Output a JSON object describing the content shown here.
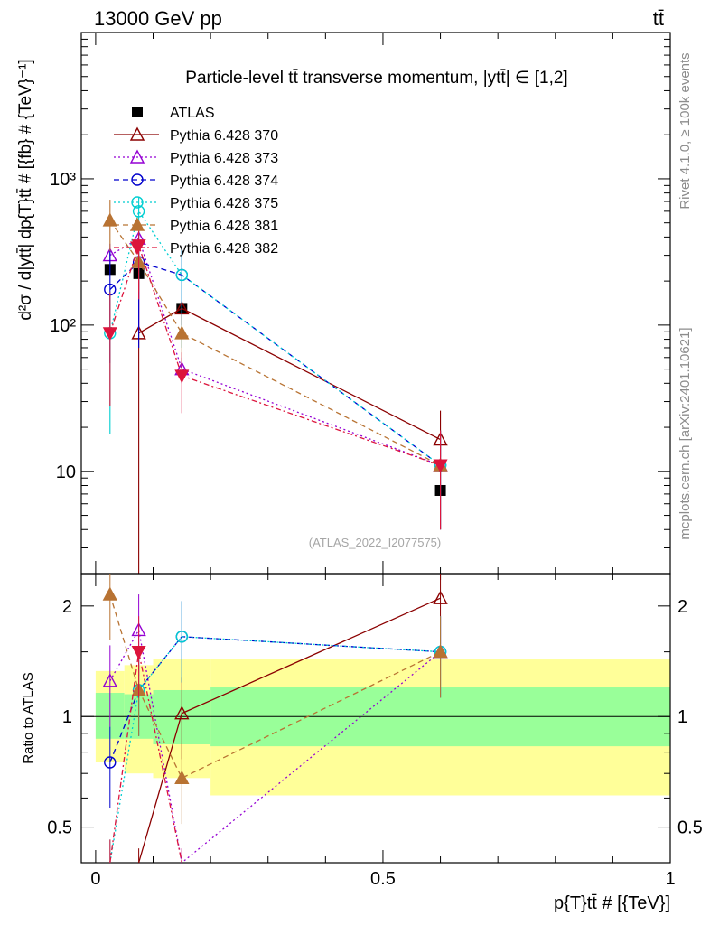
{
  "header": {
    "left": "13000 GeV pp",
    "right": "tt̄"
  },
  "side_labels": {
    "rivet": "Rivet 4.1.0, ≥ 100k events",
    "mcplots": "mcplots.cern.ch [arXiv:2401.10621]"
  },
  "chart_data": [
    {
      "type": "line",
      "panel": "main",
      "title": "Particle-level tt̄ transverse momentum, |ytt̄| ∈ [1,2]",
      "analysis_ref": "(ATLAS_2022_I2077575)",
      "ylabel": "d²σ / d|ytt̄| dp{T}tt̄ # [{fb} # {TeV}⁻¹]",
      "yscale": "log",
      "xlim": [
        -0.025,
        1.0
      ],
      "ylim": [
        2.0,
        10000
      ],
      "y_tick_labels": [
        "10",
        "10²",
        "10³"
      ],
      "y_tick_values": [
        10,
        100,
        1000
      ],
      "x_bins": [
        [
          0.0,
          0.05
        ],
        [
          0.05,
          0.1
        ],
        [
          0.1,
          0.2
        ],
        [
          0.2,
          1.0
        ]
      ],
      "series": [
        {
          "name": "ATLAS",
          "color": "#000000",
          "marker": "square",
          "line": "none",
          "x": [
            0.025,
            0.075,
            0.15,
            0.6
          ],
          "values": [
            240,
            225,
            130,
            7.4
          ]
        },
        {
          "name": "Pythia 6.428 370",
          "color": "#8b0000",
          "marker": "triangle-open",
          "line": "solid",
          "x": [
            0.025,
            0.075,
            0.15,
            0.6
          ],
          "values": [
            null,
            88,
            130,
            16.5
          ],
          "err_lo": [
            null,
            88,
            12,
            4
          ],
          "err_hi": [
            null,
            200,
            16,
            9.5
          ]
        },
        {
          "name": "Pythia 6.428 373",
          "color": "#9400d3",
          "marker": "triangle-open",
          "line": "dotted",
          "x": [
            0.025,
            0.075,
            0.15,
            0.6
          ],
          "values": [
            300,
            390,
            50,
            11
          ],
          "err_lo": [
            40,
            300,
            10,
            7
          ],
          "err_hi": [
            60,
            70,
            10,
            8
          ]
        },
        {
          "name": "Pythia 6.428 374",
          "color": "#0000cd",
          "marker": "circle-open",
          "line": "dashed",
          "x": [
            0.025,
            0.075,
            0.15,
            0.6
          ],
          "values": [
            175,
            270,
            220,
            11
          ],
          "err_lo": [
            120,
            200,
            120,
            7
          ],
          "err_hi": [
            150,
            60,
            120,
            8
          ]
        },
        {
          "name": "Pythia 6.428 375",
          "color": "#00ced1",
          "marker": "circle-open",
          "line": "dotted",
          "x": [
            0.025,
            0.075,
            0.15,
            0.6
          ],
          "values": [
            88,
            600,
            220,
            11
          ],
          "err_lo": [
            70,
            400,
            150,
            7
          ],
          "err_hi": [
            80,
            150,
            120,
            8
          ]
        },
        {
          "name": "Pythia 6.428 381",
          "color": "#b87333",
          "marker": "triangle-filled",
          "line": "dashed",
          "x": [
            0.025,
            0.075,
            0.15,
            0.6
          ],
          "values": [
            520,
            270,
            88,
            11
          ],
          "err_lo": [
            200,
            100,
            40,
            7
          ],
          "err_hi": [
            200,
            100,
            30,
            8
          ]
        },
        {
          "name": "Pythia 6.428 382",
          "color": "#dc143c",
          "marker": "triangle-down-filled",
          "line": "dashdot",
          "x": [
            0.025,
            0.075,
            0.15,
            0.6
          ],
          "values": [
            88,
            350,
            45,
            11
          ],
          "err_lo": [
            60,
            200,
            20,
            7
          ],
          "err_hi": [
            80,
            100,
            20,
            8
          ]
        }
      ]
    },
    {
      "type": "line",
      "panel": "ratio",
      "ylabel": "Ratio to ATLAS",
      "xlabel": "p{T}tt̄ # [{TeV}]",
      "xlim": [
        -0.025,
        1.0
      ],
      "ylim": [
        0.4,
        2.45
      ],
      "x_tick_labels": [
        "0",
        "0.5",
        "1"
      ],
      "x_tick_values": [
        0,
        0.5,
        1
      ],
      "y_tick_labels": [
        "0.5",
        "1",
        "2"
      ],
      "y_tick_values": [
        0.5,
        1,
        2
      ],
      "bands": {
        "bins": [
          [
            0.0,
            0.05
          ],
          [
            0.05,
            0.1
          ],
          [
            0.1,
            0.2
          ],
          [
            0.2,
            1.0
          ]
        ],
        "inner_green": [
          [
            0.87,
            1.16
          ],
          [
            0.87,
            1.15
          ],
          [
            0.84,
            1.18
          ],
          [
            0.83,
            1.2
          ]
        ],
        "outer_yellow": [
          [
            0.75,
            1.33
          ],
          [
            0.7,
            1.38
          ],
          [
            0.68,
            1.43
          ],
          [
            0.61,
            1.43
          ]
        ]
      },
      "series": [
        {
          "name": "Pythia 6.428 370",
          "color": "#8b0000",
          "x": [
            0.075,
            0.15,
            0.6
          ],
          "values": [
            0.35,
            1.02,
            2.1
          ]
        },
        {
          "name": "Pythia 6.428 373",
          "color": "#9400d3",
          "x": [
            0.025,
            0.075,
            0.15,
            0.6
          ],
          "values": [
            1.25,
            1.72,
            0.35,
            1.5
          ]
        },
        {
          "name": "Pythia 6.428 374",
          "color": "#0000cd",
          "x": [
            0.025,
            0.075,
            0.15,
            0.6
          ],
          "values": [
            0.75,
            1.18,
            1.65,
            1.5
          ]
        },
        {
          "name": "Pythia 6.428 375",
          "color": "#00ced1",
          "x": [
            0.025,
            0.075,
            0.15,
            0.6
          ],
          "values": [
            0.37,
            1.18,
            1.65,
            1.5
          ]
        },
        {
          "name": "Pythia 6.428 381",
          "color": "#b87333",
          "x": [
            0.025,
            0.075,
            0.15,
            0.6
          ],
          "values": [
            2.15,
            1.18,
            0.68,
            1.5
          ]
        },
        {
          "name": "Pythia 6.428 382",
          "color": "#dc143c",
          "x": [
            0.025,
            0.075,
            0.15
          ],
          "values": [
            0.37,
            1.5,
            0.35
          ]
        }
      ]
    }
  ]
}
